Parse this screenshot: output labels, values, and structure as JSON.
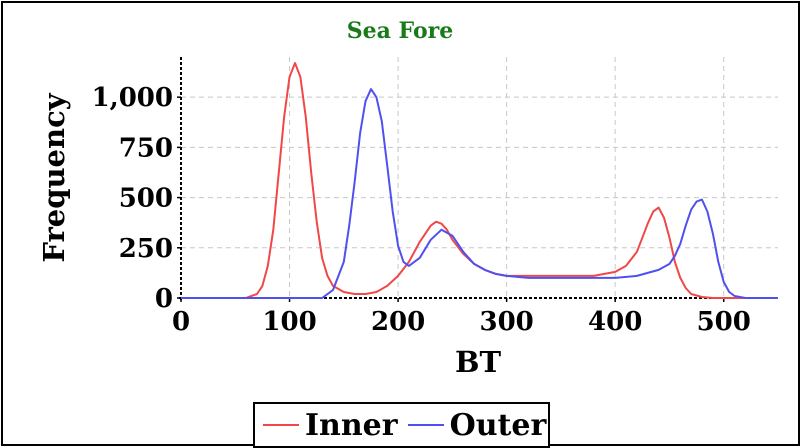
{
  "chart_data": {
    "type": "line",
    "title": "Sea Fore",
    "title_color": "#1a7a1a",
    "xlabel": "BT",
    "ylabel": "Frequency",
    "xlim": [
      0,
      550
    ],
    "ylim": [
      0,
      1200
    ],
    "xticks": [
      0,
      100,
      200,
      300,
      400,
      500
    ],
    "xtick_labels": [
      "0",
      "100",
      "200",
      "300",
      "400",
      "500"
    ],
    "yticks": [
      0,
      250,
      500,
      750,
      1000
    ],
    "ytick_labels": [
      "0",
      "250",
      "500",
      "750",
      "1,000"
    ],
    "grid": true,
    "legend_position": "bottom",
    "series": [
      {
        "name": "Inner",
        "color": "#f04848",
        "x": [
          0,
          60,
          70,
          75,
          80,
          85,
          90,
          95,
          100,
          105,
          110,
          115,
          120,
          125,
          130,
          135,
          140,
          150,
          160,
          170,
          180,
          190,
          200,
          210,
          220,
          230,
          235,
          240,
          245,
          250,
          260,
          270,
          280,
          290,
          300,
          320,
          340,
          360,
          380,
          400,
          410,
          420,
          425,
          430,
          435,
          440,
          445,
          450,
          455,
          460,
          465,
          470,
          480,
          490,
          500,
          550
        ],
        "y": [
          0,
          0,
          20,
          60,
          160,
          340,
          620,
          900,
          1100,
          1170,
          1100,
          900,
          620,
          380,
          200,
          110,
          60,
          30,
          20,
          20,
          30,
          60,
          110,
          180,
          280,
          360,
          380,
          370,
          340,
          290,
          220,
          170,
          140,
          120,
          110,
          110,
          110,
          110,
          110,
          130,
          160,
          230,
          300,
          370,
          430,
          450,
          400,
          300,
          180,
          100,
          50,
          20,
          5,
          0,
          0,
          0
        ]
      },
      {
        "name": "Outer",
        "color": "#5050f0",
        "x": [
          0,
          130,
          140,
          150,
          155,
          160,
          165,
          170,
          175,
          180,
          185,
          190,
          195,
          200,
          205,
          210,
          220,
          230,
          240,
          250,
          260,
          270,
          280,
          290,
          300,
          320,
          340,
          360,
          380,
          400,
          420,
          440,
          450,
          455,
          460,
          465,
          470,
          475,
          480,
          485,
          490,
          495,
          500,
          505,
          510,
          520,
          550
        ],
        "y": [
          0,
          0,
          40,
          180,
          360,
          580,
          820,
          980,
          1040,
          1000,
          880,
          660,
          430,
          260,
          180,
          160,
          200,
          290,
          340,
          310,
          230,
          170,
          140,
          120,
          110,
          100,
          100,
          100,
          100,
          100,
          110,
          140,
          170,
          210,
          270,
          360,
          440,
          480,
          490,
          430,
          320,
          180,
          80,
          30,
          10,
          0,
          0
        ]
      }
    ]
  }
}
